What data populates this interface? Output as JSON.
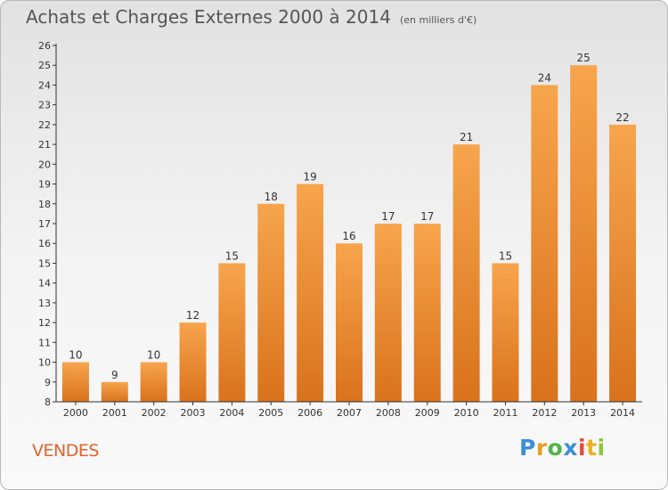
{
  "header": {
    "title": "Achats et Charges Externes 2000 à 2014",
    "subtitle": "(en milliers d'€)"
  },
  "footer": {
    "place": "VENDES",
    "logo": [
      "P",
      "r",
      "o",
      "x",
      "i",
      "t",
      "i"
    ]
  },
  "colors": {
    "bar_top": "#f7a54d",
    "bar_bottom": "#d9721c",
    "axis": "#333333",
    "grid": "#bbbbbb",
    "place": "#e0642c"
  },
  "chart_data": {
    "type": "bar",
    "title": "Achats et Charges Externes 2000 à 2014",
    "subtitle": "(en milliers d'€)",
    "categories": [
      "2000",
      "2001",
      "2002",
      "2003",
      "2004",
      "2005",
      "2006",
      "2007",
      "2008",
      "2009",
      "2010",
      "2011",
      "2012",
      "2013",
      "2014"
    ],
    "values": [
      10,
      9,
      10,
      12,
      15,
      18,
      19,
      16,
      17,
      17,
      21,
      15,
      24,
      25,
      22
    ],
    "ylim": [
      8,
      26
    ],
    "yticks": [
      8,
      9,
      10,
      11,
      12,
      13,
      14,
      15,
      16,
      17,
      18,
      19,
      20,
      21,
      22,
      23,
      24,
      25,
      26
    ],
    "xlabel": "",
    "ylabel": "",
    "grid": false,
    "data_labels": true
  }
}
